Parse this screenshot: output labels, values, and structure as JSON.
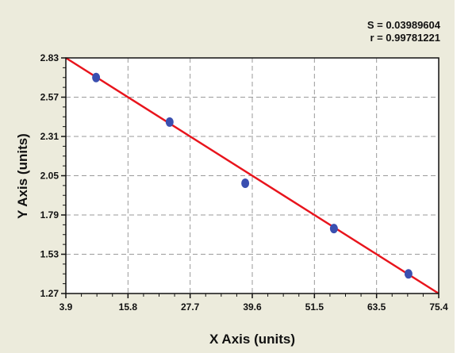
{
  "stats": {
    "s": "S = 0.03989604",
    "r": "r = 0.99781221"
  },
  "chart_data": {
    "type": "scatter",
    "xlabel": "X Axis (units)",
    "ylabel": "Y Axis (units)",
    "xlim": [
      3.9,
      75.4
    ],
    "ylim": [
      1.27,
      2.83
    ],
    "xticks": [
      "3.9",
      "15.8",
      "27.7",
      "39.6",
      "51.5",
      "63.5",
      "75.4"
    ],
    "yticks": [
      "1.27",
      "1.53",
      "1.79",
      "2.05",
      "2.31",
      "2.57",
      "2.83"
    ],
    "grid": true,
    "points": {
      "x": [
        9.7,
        23.8,
        38.3,
        55.3,
        69.6
      ],
      "y": [
        2.7,
        2.405,
        2.0,
        1.7,
        1.4
      ]
    },
    "fit_line": {
      "x": [
        3.9,
        75.4
      ],
      "y": [
        2.83,
        1.27
      ]
    },
    "colors": {
      "points": "#3a4fb0",
      "line": "#e8141c",
      "grid": "#9a9a9a",
      "background": "#ecebdc"
    }
  }
}
